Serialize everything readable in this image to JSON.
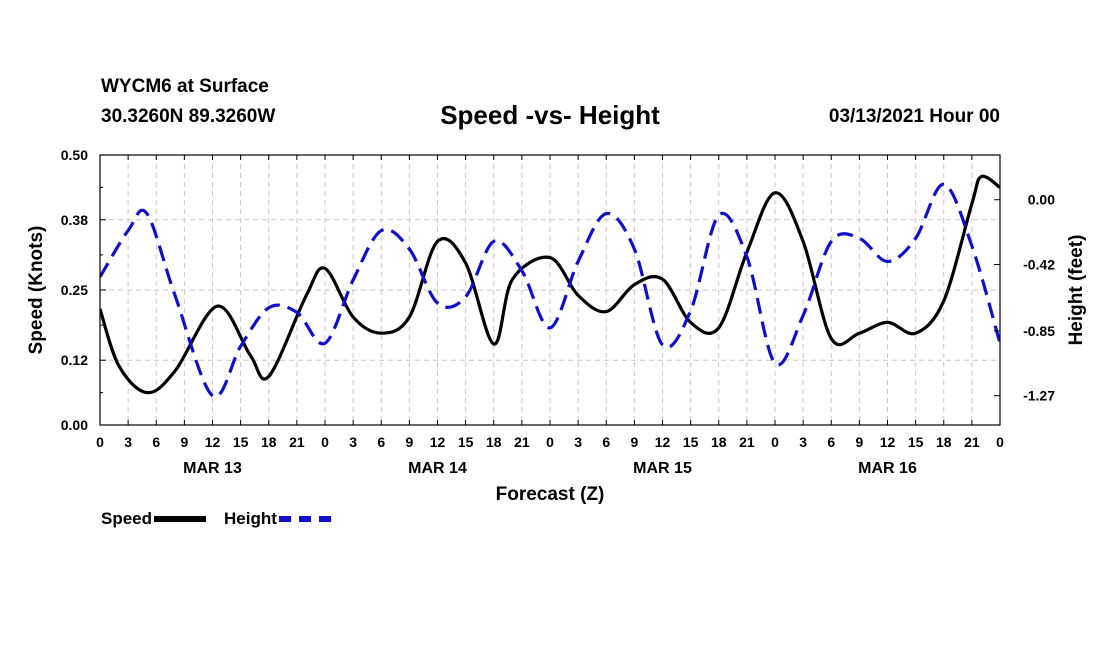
{
  "header": {
    "station": "WYCM6 at Surface",
    "coords": "30.3260N 89.3260W",
    "title": "Speed -vs- Height",
    "datetime": "03/13/2021 Hour 00"
  },
  "legend": {
    "speed": "Speed",
    "height": "Height"
  },
  "colors": {
    "speed": "#000000",
    "height": "#1010cc",
    "grid": "#c8c8c8"
  },
  "chart_data": {
    "type": "line",
    "title": "Speed -vs- Height",
    "xlabel": "Forecast (Z)",
    "ylabel_left": "Speed (Knots)",
    "ylabel_right": "Height (feet)",
    "x_hours_range": [
      0,
      96
    ],
    "x_tick_hours": [
      0,
      3,
      6,
      9,
      12,
      15,
      18,
      21,
      24,
      27,
      30,
      33,
      36,
      39,
      42,
      45,
      48,
      51,
      54,
      57,
      60,
      63,
      66,
      69,
      72,
      75,
      78,
      81,
      84,
      87,
      90,
      93,
      96
    ],
    "x_tick_labels": [
      "0",
      "3",
      "6",
      "9",
      "12",
      "15",
      "18",
      "21",
      "0",
      "3",
      "6",
      "9",
      "12",
      "15",
      "18",
      "21",
      "0",
      "3",
      "6",
      "9",
      "12",
      "15",
      "18",
      "21",
      "0",
      "3",
      "6",
      "9",
      "12",
      "15",
      "18",
      "21",
      "0"
    ],
    "date_labels": [
      {
        "hour": 12,
        "label": "MAR 13"
      },
      {
        "hour": 36,
        "label": "MAR 14"
      },
      {
        "hour": 60,
        "label": "MAR 15"
      },
      {
        "hour": 84,
        "label": "MAR 16"
      }
    ],
    "left_axis": {
      "range": [
        0,
        0.5
      ],
      "ticks": [
        0.0,
        0.12,
        0.25,
        0.38,
        0.5
      ],
      "tick_labels": [
        "0.00",
        "0.12",
        "0.25",
        "0.38",
        "0.50"
      ]
    },
    "right_axis": {
      "range": [
        -1.46,
        0.29
      ],
      "ticks": [
        0.0,
        -0.42,
        -0.85,
        -1.27
      ],
      "tick_labels": [
        "0.00",
        "-0.42",
        "-0.85",
        "-1.27"
      ]
    },
    "grid": true,
    "series": [
      {
        "name": "Speed",
        "axis": "left",
        "style": "solid",
        "x": [
          0,
          2,
          5,
          8,
          12.5,
          16,
          18,
          22,
          24,
          27,
          30,
          33,
          36,
          39,
          42,
          44,
          48,
          51,
          54,
          57,
          60,
          63,
          66,
          69,
          72,
          75,
          78,
          81,
          84,
          87,
          90,
          93,
          94,
          96
        ],
        "y": [
          0.215,
          0.11,
          0.06,
          0.1,
          0.22,
          0.13,
          0.09,
          0.24,
          0.29,
          0.2,
          0.17,
          0.2,
          0.34,
          0.3,
          0.15,
          0.27,
          0.31,
          0.24,
          0.21,
          0.26,
          0.27,
          0.19,
          0.18,
          0.32,
          0.43,
          0.34,
          0.16,
          0.17,
          0.19,
          0.17,
          0.23,
          0.41,
          0.46,
          0.44
        ]
      },
      {
        "name": "Height",
        "axis": "right",
        "style": "dashed",
        "x": [
          0,
          3,
          5,
          8,
          12,
          15,
          18,
          21,
          24,
          27,
          30,
          33,
          36,
          39,
          42,
          45,
          48,
          51,
          54,
          57,
          60,
          63,
          66,
          69,
          72,
          75,
          78,
          81,
          84,
          87,
          90,
          93,
          96
        ],
        "y": [
          -0.5,
          -0.2,
          -0.09,
          -0.62,
          -1.27,
          -0.95,
          -0.7,
          -0.73,
          -0.93,
          -0.52,
          -0.2,
          -0.32,
          -0.67,
          -0.63,
          -0.27,
          -0.46,
          -0.83,
          -0.4,
          -0.09,
          -0.32,
          -0.94,
          -0.72,
          -0.1,
          -0.37,
          -1.06,
          -0.75,
          -0.27,
          -0.25,
          -0.4,
          -0.25,
          0.1,
          -0.3,
          -0.93
        ]
      }
    ]
  }
}
